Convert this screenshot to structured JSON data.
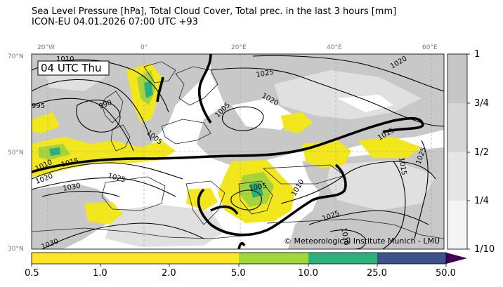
{
  "header": {
    "title_line1": "Sea Level Pressure [hPa], Total Cloud Cover, Total prec. in the last 3 hours [mm]",
    "title_line2": "ICON-EU 04.01.2026 07:00 UTC +93"
  },
  "map": {
    "time_label": "04 UTC Thu",
    "copyright": "© Meteorological Institute Munich - LMU",
    "lon_labels": [
      "20°W",
      "0°",
      "20°E",
      "40°E",
      "60°E"
    ],
    "lat_labels": [
      "70°N",
      "50°N",
      "30°N"
    ],
    "isobar_labels": [
      "1010",
      "995",
      "990",
      "1005",
      "1025",
      "1020",
      "1005",
      "1015",
      "1010",
      "1015",
      "1020",
      "1025",
      "1030",
      "1005",
      "1010",
      "1025",
      "1030",
      "1020",
      "1015",
      "1010",
      "1025",
      "1010",
      "1030"
    ],
    "colors": {
      "cloud_overcast": "#c8c8c8",
      "cloud_broken": "#dcdcdc",
      "precip_light": "#f2e61c",
      "precip_mid": "#a6d33c",
      "precip_heavy": "#2ab07f",
      "precip_veryheavy": "#3b528b",
      "precip_extreme": "#440154"
    }
  },
  "cloud_colorbar": {
    "labels": [
      "1",
      "3/4",
      "1/2",
      "1/4",
      "1/10"
    ]
  },
  "precip_colorbar": {
    "labels": [
      "0.5",
      "1.0",
      "2.0",
      "5.0",
      "10.0",
      "25.0",
      "50.0"
    ],
    "colors": [
      "#fde725",
      "#fde725",
      "#fde725",
      "#a0d83b",
      "#2db27d",
      "#3b528b",
      "#440154"
    ]
  }
}
